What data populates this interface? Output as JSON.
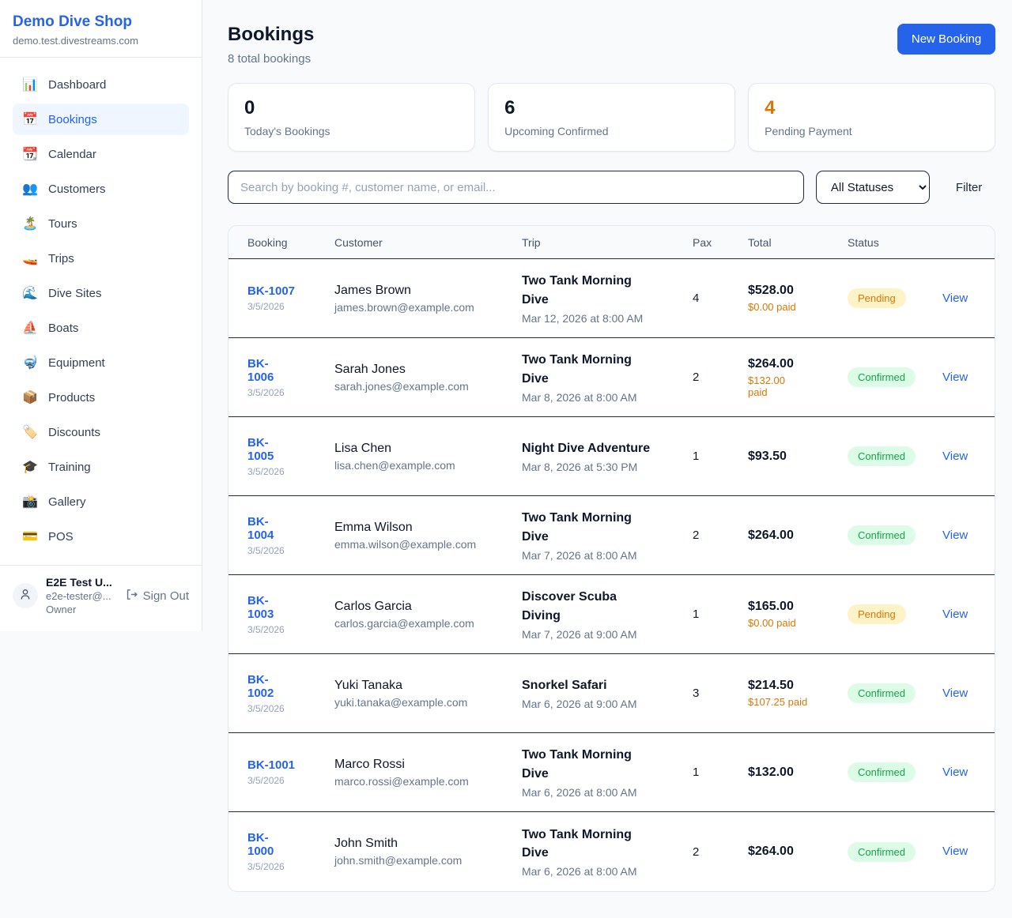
{
  "colors": {
    "accent_blue": "#2563eb",
    "pending_orange": "#d97706",
    "confirmed_green": "#16a34a",
    "page_background": "#f8fafc"
  },
  "sidebar": {
    "brand": {
      "name": "Demo Dive Shop",
      "domain": "demo.test.divestreams.com"
    },
    "items": [
      {
        "label": "Dashboard",
        "icon": "📊",
        "icon_name": "dashboard-icon",
        "active": false
      },
      {
        "label": "Bookings",
        "icon": "📅",
        "icon_name": "bookings-icon",
        "active": true
      },
      {
        "label": "Calendar",
        "icon": "📆",
        "icon_name": "calendar-icon",
        "active": false
      },
      {
        "label": "Customers",
        "icon": "👥",
        "icon_name": "customers-icon",
        "active": false
      },
      {
        "label": "Tours",
        "icon": "🏝️",
        "icon_name": "tours-icon",
        "active": false
      },
      {
        "label": "Trips",
        "icon": "🚤",
        "icon_name": "trips-icon",
        "active": false
      },
      {
        "label": "Dive Sites",
        "icon": "🌊",
        "icon_name": "dive-sites-icon",
        "active": false
      },
      {
        "label": "Boats",
        "icon": "⛵",
        "icon_name": "boats-icon",
        "active": false
      },
      {
        "label": "Equipment",
        "icon": "🤿",
        "icon_name": "equipment-icon",
        "active": false
      },
      {
        "label": "Products",
        "icon": "📦",
        "icon_name": "products-icon",
        "active": false
      },
      {
        "label": "Discounts",
        "icon": "🏷️",
        "icon_name": "discounts-icon",
        "active": false
      },
      {
        "label": "Training",
        "icon": "🎓",
        "icon_name": "training-icon",
        "active": false
      },
      {
        "label": "Gallery",
        "icon": "📸",
        "icon_name": "gallery-icon",
        "active": false
      },
      {
        "label": "POS",
        "icon": "💳",
        "icon_name": "pos-icon",
        "active": false
      }
    ],
    "user": {
      "name": "E2E Test U...",
      "email": "e2e-tester@...",
      "role": "Owner",
      "sign_out_label": "Sign Out"
    }
  },
  "header": {
    "title": "Bookings",
    "subtitle": "8 total bookings",
    "new_booking_label": "New Booking"
  },
  "stats": [
    {
      "value": "0",
      "label": "Today's Bookings",
      "value_color": "#0f172a"
    },
    {
      "value": "6",
      "label": "Upcoming Confirmed",
      "value_color": "#0f172a"
    },
    {
      "value": "4",
      "label": "Pending Payment",
      "value_color": "#d97706"
    }
  ],
  "toolbar": {
    "search_placeholder": "Search by booking #, customer name, or email...",
    "status_filter_value": "All Statuses",
    "filter_label": "Filter"
  },
  "table": {
    "columns": [
      "Booking",
      "Customer",
      "Trip",
      "Pax",
      "Total",
      "Status"
    ],
    "rows": [
      {
        "number": "BK-1007",
        "date": "3/5/2026",
        "customer_name": "James Brown",
        "customer_email": "james.brown@example.com",
        "trip_name": "Two Tank Morning\nDive",
        "trip_datetime": "Mar 12, 2026 at 8:00 AM",
        "pax": "4",
        "total": "$528.00",
        "paid": "$0.00 paid",
        "status": "Pending",
        "status_type": "pending",
        "action_label": "View"
      },
      {
        "number": "BK-\n1006",
        "date": "3/5/2026",
        "customer_name": "Sarah Jones",
        "customer_email": "sarah.jones@example.com",
        "trip_name": "Two Tank Morning\nDive",
        "trip_datetime": "Mar 8, 2026 at 8:00 AM",
        "pax": "2",
        "total": "$264.00",
        "paid": "$132.00\npaid",
        "status": "Confirmed",
        "status_type": "confirmed",
        "action_label": "View"
      },
      {
        "number": "BK-\n1005",
        "date": "3/5/2026",
        "customer_name": "Lisa Chen",
        "customer_email": "lisa.chen@example.com",
        "trip_name": "Night Dive Adventure",
        "trip_datetime": "Mar 8, 2026 at 5:30 PM",
        "pax": "1",
        "total": "$93.50",
        "paid": null,
        "status": "Confirmed",
        "status_type": "confirmed",
        "action_label": "View"
      },
      {
        "number": "BK-\n1004",
        "date": "3/5/2026",
        "customer_name": "Emma Wilson",
        "customer_email": "emma.wilson@example.com",
        "trip_name": "Two Tank Morning\nDive",
        "trip_datetime": "Mar 7, 2026 at 8:00 AM",
        "pax": "2",
        "total": "$264.00",
        "paid": null,
        "status": "Confirmed",
        "status_type": "confirmed",
        "action_label": "View"
      },
      {
        "number": "BK-\n1003",
        "date": "3/5/2026",
        "customer_name": "Carlos Garcia",
        "customer_email": "carlos.garcia@example.com",
        "trip_name": "Discover Scuba\nDiving",
        "trip_datetime": "Mar 7, 2026 at 9:00 AM",
        "pax": "1",
        "total": "$165.00",
        "paid": "$0.00 paid",
        "status": "Pending",
        "status_type": "pending",
        "action_label": "View"
      },
      {
        "number": "BK-\n1002",
        "date": "3/5/2026",
        "customer_name": "Yuki Tanaka",
        "customer_email": "yuki.tanaka@example.com",
        "trip_name": "Snorkel Safari",
        "trip_datetime": "Mar 6, 2026 at 9:00 AM",
        "pax": "3",
        "total": "$214.50",
        "paid": "$107.25 paid",
        "status": "Confirmed",
        "status_type": "confirmed",
        "action_label": "View"
      },
      {
        "number": "BK-1001",
        "date": "3/5/2026",
        "customer_name": "Marco Rossi",
        "customer_email": "marco.rossi@example.com",
        "trip_name": "Two Tank Morning\nDive",
        "trip_datetime": "Mar 6, 2026 at 8:00 AM",
        "pax": "1",
        "total": "$132.00",
        "paid": null,
        "status": "Confirmed",
        "status_type": "confirmed",
        "action_label": "View"
      },
      {
        "number": "BK-\n1000",
        "date": "3/5/2026",
        "customer_name": "John Smith",
        "customer_email": "john.smith@example.com",
        "trip_name": "Two Tank Morning\nDive",
        "trip_datetime": "Mar 6, 2026 at 8:00 AM",
        "pax": "2",
        "total": "$264.00",
        "paid": null,
        "status": "Confirmed",
        "status_type": "confirmed",
        "action_label": "View"
      }
    ]
  }
}
